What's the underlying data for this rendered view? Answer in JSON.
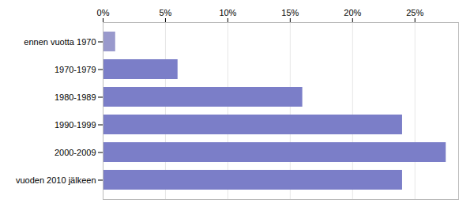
{
  "chart_data": {
    "type": "bar",
    "orientation": "horizontal",
    "categories": [
      "ennen vuotta 1970",
      "1970-1979",
      "1980-1989",
      "1990-1999",
      "2000-2009",
      "vuoden 2010 jälkeen"
    ],
    "values": [
      1.0,
      6.0,
      16.0,
      24.0,
      27.5,
      24.0
    ],
    "colors": [
      "#9999cc",
      "#7b7ec8",
      "#7b7ec8",
      "#7b7ec8",
      "#7b7ec8",
      "#7b7ec8"
    ],
    "xlim": [
      0,
      28.5
    ],
    "xticks": [
      {
        "value": 0,
        "label": "0%"
      },
      {
        "value": 5,
        "label": "5%"
      },
      {
        "value": 10,
        "label": "10%"
      },
      {
        "value": 15,
        "label": "15%"
      },
      {
        "value": 20,
        "label": "20%"
      },
      {
        "value": 25,
        "label": "25%"
      }
    ],
    "grid": true
  }
}
